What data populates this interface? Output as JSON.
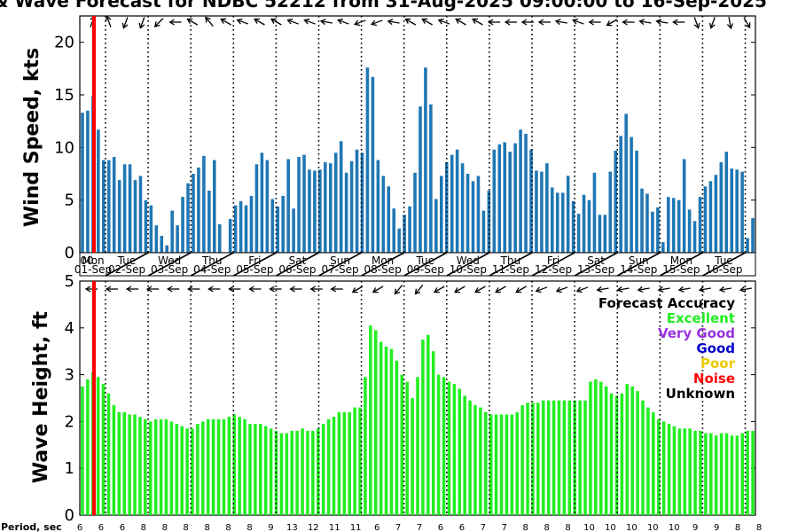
{
  "title": "& Wave Forecast for NDBC 52212 from 31-Aug-2025 09:00:00 to 16-Sep-2025",
  "colors": {
    "wind_bar": "#1f77b4",
    "wave_bar": "#22ee22",
    "now_line": "#ff0000"
  },
  "chart_data": [
    {
      "type": "bar",
      "ylabel": "Wind Speed, kts",
      "ylim": [
        0,
        22.5
      ],
      "yticks": [
        "0",
        "5",
        "10",
        "15",
        "20"
      ],
      "day_labels": [
        {
          "day": "Mon",
          "date": "01-Sep"
        },
        {
          "day": "Tue",
          "date": "02-Sep"
        },
        {
          "day": "Wed",
          "date": "03-Sep"
        },
        {
          "day": "Thu",
          "date": "04-Sep"
        },
        {
          "day": "Fri",
          "date": "05-Sep"
        },
        {
          "day": "Sat",
          "date": "06-Sep"
        },
        {
          "day": "Sun",
          "date": "07-Sep"
        },
        {
          "day": "Mon",
          "date": "08-Sep"
        },
        {
          "day": "Tue",
          "date": "09-Sep"
        },
        {
          "day": "Wed",
          "date": "10-Sep"
        },
        {
          "day": "Thu",
          "date": "11-Sep"
        },
        {
          "day": "Fri",
          "date": "12-Sep"
        },
        {
          "day": "Sat",
          "date": "13-Sep"
        },
        {
          "day": "Sun",
          "date": "14-Sep"
        },
        {
          "day": "Mon",
          "date": "15-Sep"
        },
        {
          "day": "Tue",
          "date": "16-Sep"
        }
      ],
      "now_marker_label": "00",
      "values": [
        13.3,
        13.5,
        14.9,
        11.7,
        8.8,
        8.8,
        9.1,
        6.9,
        8.4,
        8.4,
        6.9,
        7.3,
        5.0,
        4.5,
        2.6,
        1.6,
        0.7,
        4.0,
        2.6,
        5.3,
        6.6,
        7.5,
        8.1,
        9.2,
        5.9,
        8.8,
        2.7,
        0,
        3.2,
        4.5,
        4.9,
        4.5,
        5.4,
        8.4,
        9.5,
        8.8,
        5.1,
        4.4,
        5.4,
        8.9,
        4.2,
        9.1,
        9.3,
        7.9,
        7.8,
        7.9,
        8.6,
        8.5,
        9.5,
        10.6,
        7.6,
        8.7,
        9.8,
        9.5,
        17.6,
        16.7,
        8.8,
        7.3,
        6.3,
        4.2,
        2.3,
        3.6,
        4.4,
        7.6,
        13.9,
        17.6,
        14.1,
        5.1,
        7.3,
        8.6,
        9.3,
        9.8,
        8.5,
        7.5,
        6.8,
        7.3,
        4.0,
        5.9,
        9.8,
        10.3,
        10.5,
        9.6,
        10.4,
        11.7,
        11.3,
        9.8,
        7.8,
        7.7,
        8.5,
        6.2,
        5.7,
        5.7,
        7.3,
        4.9,
        3.7,
        5.5,
        5.0,
        7.6,
        3.6,
        3.6,
        7.7,
        9.7,
        11.1,
        13.2,
        11.0,
        9.7,
        6.1,
        5.6,
        3.9,
        4.3,
        1.0,
        5.3,
        5.2,
        5.0,
        8.9,
        4.1,
        3.0,
        5.3,
        6.3,
        6.8,
        7.4,
        8.6,
        9.6,
        8.0,
        7.9,
        7.7,
        1.4,
        3.3
      ]
    },
    {
      "type": "bar",
      "ylabel": "Wave Height, ft",
      "ylim": [
        0,
        5
      ],
      "yticks": [
        "0",
        "1",
        "2",
        "3",
        "4",
        "5"
      ],
      "values": [
        2.75,
        2.9,
        3.05,
        2.95,
        2.8,
        2.6,
        2.35,
        2.2,
        2.2,
        2.15,
        2.15,
        2.1,
        2.05,
        2.0,
        2.05,
        2.05,
        2.05,
        2.0,
        1.95,
        1.9,
        1.85,
        1.85,
        1.95,
        2.0,
        2.05,
        2.05,
        2.05,
        2.05,
        2.1,
        2.15,
        2.1,
        2.05,
        1.95,
        1.95,
        1.95,
        1.9,
        1.85,
        1.8,
        1.75,
        1.75,
        1.8,
        1.8,
        1.85,
        1.8,
        1.8,
        1.85,
        1.95,
        2.05,
        2.1,
        2.2,
        2.2,
        2.2,
        2.3,
        2.3,
        2.95,
        4.05,
        3.95,
        3.7,
        3.6,
        3.55,
        3.3,
        3.0,
        2.85,
        2.5,
        2.95,
        3.75,
        3.85,
        3.5,
        3.0,
        2.95,
        2.85,
        2.8,
        2.7,
        2.55,
        2.45,
        2.35,
        2.3,
        2.2,
        2.15,
        2.15,
        2.15,
        2.15,
        2.15,
        2.2,
        2.35,
        2.4,
        2.4,
        2.4,
        2.45,
        2.45,
        2.45,
        2.45,
        2.45,
        2.45,
        2.45,
        2.45,
        2.45,
        2.85,
        2.9,
        2.85,
        2.75,
        2.6,
        2.55,
        2.6,
        2.8,
        2.75,
        2.65,
        2.45,
        2.3,
        2.2,
        2.05,
        2.0,
        1.95,
        1.9,
        1.85,
        1.85,
        1.85,
        1.8,
        1.8,
        1.75,
        1.75,
        1.7,
        1.75,
        1.75,
        1.7,
        1.7,
        1.75,
        1.8,
        1.8
      ]
    }
  ],
  "period": {
    "label": "Period, sec",
    "values": [
      "6",
      "6",
      "6",
      "8",
      "8",
      "8",
      "8",
      "8",
      "8",
      "9",
      "13",
      "12",
      "11",
      "11",
      "6",
      "7",
      "7",
      "6",
      "6",
      "7",
      "7",
      "8",
      "8",
      "8",
      "10",
      "10",
      "10",
      "10",
      "10",
      "9",
      "9",
      "8",
      "8"
    ]
  },
  "legend": {
    "title": "Forecast Accuracy",
    "items": [
      {
        "label": "Excellent",
        "color": "#22ee22"
      },
      {
        "label": "Very Good",
        "color": "#9933dd"
      },
      {
        "label": "Good",
        "color": "#0000cc"
      },
      {
        "label": "Poor",
        "color": "#eecc00"
      },
      {
        "label": "Noise",
        "color": "#ff0000"
      },
      {
        "label": "Unknown",
        "color": "#000000"
      }
    ]
  },
  "wind_arrow_dirs": [
    200,
    160,
    20,
    20,
    45,
    90,
    120,
    140,
    120,
    110,
    120,
    120,
    110,
    110,
    100,
    110,
    70,
    70,
    100,
    120,
    120,
    110,
    120,
    120,
    90,
    90,
    90,
    90,
    100,
    110,
    90,
    60,
    90,
    100,
    100,
    90,
    340,
    20,
    350,
    330
  ],
  "wave_arrow_dirs": [
    90,
    90,
    90,
    90,
    90,
    90,
    90,
    90,
    90,
    90,
    90,
    90,
    90,
    60,
    60,
    40,
    40,
    60,
    60,
    60,
    60,
    60,
    70,
    70,
    70,
    80,
    80,
    80,
    80,
    80,
    80,
    80,
    80
  ]
}
